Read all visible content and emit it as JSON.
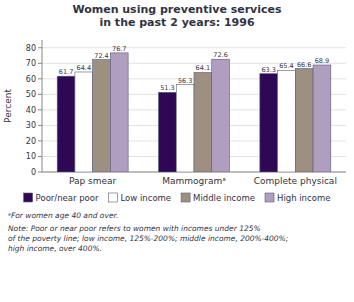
{
  "chart_data": {
    "type": "bar",
    "title": "Women using preventive services\nin the past 2 years: 1996",
    "categories": [
      "Pap smear",
      "Mammogramᵃ",
      "Complete physical"
    ],
    "series": [
      {
        "name": "Poor/near poor",
        "color": "#2e0854",
        "values": [
          61.7,
          51.3,
          63.3
        ]
      },
      {
        "name": "Low income",
        "color": "#ffffff",
        "values": [
          64.4,
          56.3,
          65.4
        ]
      },
      {
        "name": "Middle income",
        "color": "#9e9080",
        "values": [
          72.4,
          64.1,
          66.6
        ]
      },
      {
        "name": "High income",
        "color": "#b09ec0",
        "values": [
          76.7,
          72.6,
          68.9
        ]
      }
    ],
    "y_label": "Percent",
    "ylim": [
      0,
      85
    ],
    "yticks": [
      0,
      10,
      20,
      30,
      40,
      50,
      60,
      70,
      80
    ],
    "grid": true,
    "data_labels": true,
    "legend": "bottom",
    "annotations": [
      "ᵃFor women age 40 and over.",
      "Note: Poor or near poor refers to women with incomes under 125%\nof the poverty line; low income, 125%-200%; middle income, 200%-400%;\nhigh income, over 400%."
    ]
  }
}
